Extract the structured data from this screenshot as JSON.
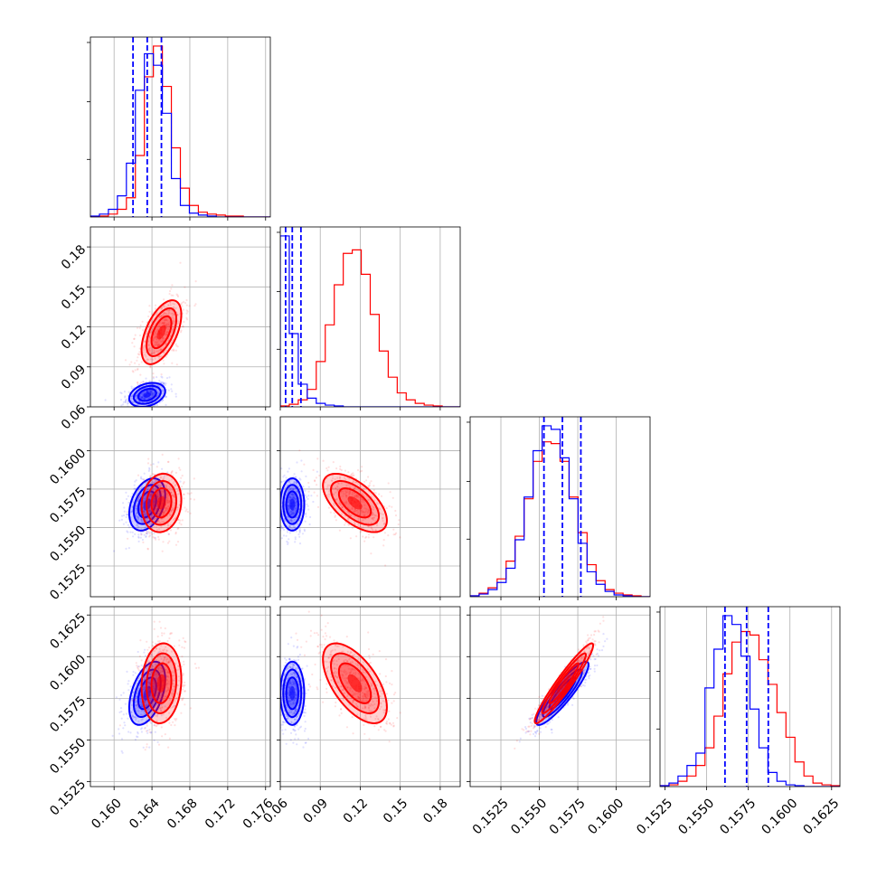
{
  "chart_data": {
    "type": "corner",
    "parameters": [
      "",
      "",
      "",
      ""
    ],
    "colors": {
      "series_a": "#0000ff",
      "series_b": "#ff0000",
      "grid": "#b0b0b0"
    },
    "ranges": [
      [
        0.1575,
        0.1765
      ],
      [
        0.06,
        0.195
      ],
      [
        0.1505,
        0.1622
      ],
      [
        0.1522,
        0.163
      ]
    ],
    "ticks": [
      [
        0.16,
        0.164,
        0.168,
        0.172,
        0.176
      ],
      [
        0.06,
        0.09,
        0.12,
        0.15,
        0.18
      ],
      [
        0.1525,
        0.155,
        0.1575,
        0.16
      ],
      [
        0.1525,
        0.155,
        0.1575,
        0.16,
        0.1625
      ]
    ],
    "tick_labels": [
      [
        "0.160",
        "0.164",
        "0.168",
        "0.172",
        "0.176"
      ],
      [
        "0.06",
        "0.09",
        "0.12",
        "0.15",
        "0.18"
      ],
      [
        "0.1525",
        "0.1550",
        "0.1575",
        "0.1600"
      ],
      [
        "0.1525",
        "0.1550",
        "0.1575",
        "0.1600",
        "0.1625"
      ]
    ],
    "series": [
      {
        "color": "#0000ff",
        "mean": [
          0.1635,
          0.069,
          0.1565,
          0.1578
        ],
        "sigma": [
          0.00095,
          0.0045,
          0.00085,
          0.00095
        ],
        "quantiles": [
          [
            0.162,
            0.1635,
            0.165
          ],
          [
            0.064,
            0.069,
            0.0755
          ],
          [
            0.1553,
            0.1565,
            0.1577
          ],
          [
            0.1561,
            0.1574,
            0.1587
          ]
        ],
        "correlation": [
          [
            1,
            0.3,
            0.35,
            0.45
          ],
          [
            0.3,
            1,
            0.0,
            0.0
          ],
          [
            0.35,
            0.0,
            1,
            0.9
          ],
          [
            0.45,
            0.0,
            0.9,
            1
          ]
        ]
      },
      {
        "color": "#ff0000",
        "mean": [
          0.165,
          0.116,
          0.1566,
          0.1584
        ],
        "sigma": [
          0.00105,
          0.012,
          0.00095,
          0.0012
        ],
        "correlation": [
          [
            1,
            0.55,
            0.1,
            0.1
          ],
          [
            0.55,
            1,
            -0.6,
            -0.6
          ],
          [
            0.1,
            -0.6,
            1,
            0.95
          ],
          [
            0.1,
            -0.6,
            0.95,
            1
          ]
        ]
      }
    ],
    "histograms": [
      {
        "bins": [
          0.1575,
          0.1765
        ],
        "series_a": [
          0.5,
          1.5,
          4,
          11,
          28,
          66,
          85,
          79,
          54,
          20,
          6,
          2,
          1,
          0.5,
          0,
          0,
          0,
          0,
          0,
          0
        ],
        "series_b": [
          0.1,
          0.5,
          1.5,
          4,
          10,
          32,
          73,
          89,
          68,
          36,
          15,
          6,
          2.5,
          1.5,
          1,
          0.5,
          0.5,
          0,
          0,
          0
        ]
      },
      {
        "bins": [
          0.06,
          0.195
        ],
        "series_a": [
          98,
          42,
          13,
          5,
          2,
          1,
          0.5,
          0,
          0,
          0,
          0,
          0,
          0,
          0,
          0,
          0,
          0,
          0,
          0,
          0
        ],
        "series_b": [
          0.5,
          1.5,
          4,
          10,
          26,
          47,
          70,
          88,
          90,
          76,
          53,
          32,
          17,
          8,
          4,
          2,
          1,
          0.5,
          0,
          0
        ]
      },
      {
        "bins": [
          0.1505,
          0.1622
        ],
        "series_a": [
          0.5,
          1.5,
          4,
          8,
          16,
          32,
          56,
          82,
          96,
          94,
          78,
          55,
          30,
          14,
          7,
          3,
          1,
          0.5,
          0,
          0
        ],
        "series_b": [
          0.5,
          2,
          5,
          10,
          20,
          34,
          55,
          76,
          87,
          86,
          76,
          56,
          36,
          18,
          9,
          4,
          2,
          1,
          0.5,
          0
        ]
      },
      {
        "bins": [
          0.1522,
          0.163
        ],
        "series_a": [
          0.5,
          2,
          6,
          12,
          19,
          56,
          78,
          97,
          92,
          74,
          44,
          22,
          8,
          3,
          1,
          0.5,
          0,
          0,
          0,
          0
        ],
        "series_b": [
          0.5,
          1,
          3,
          6,
          12,
          22,
          40,
          64,
          82,
          88,
          86,
          72,
          58,
          42,
          28,
          14,
          6,
          2,
          1,
          0.5
        ]
      }
    ],
    "quantile_lines": "dashed",
    "grid": true,
    "legend": false
  }
}
